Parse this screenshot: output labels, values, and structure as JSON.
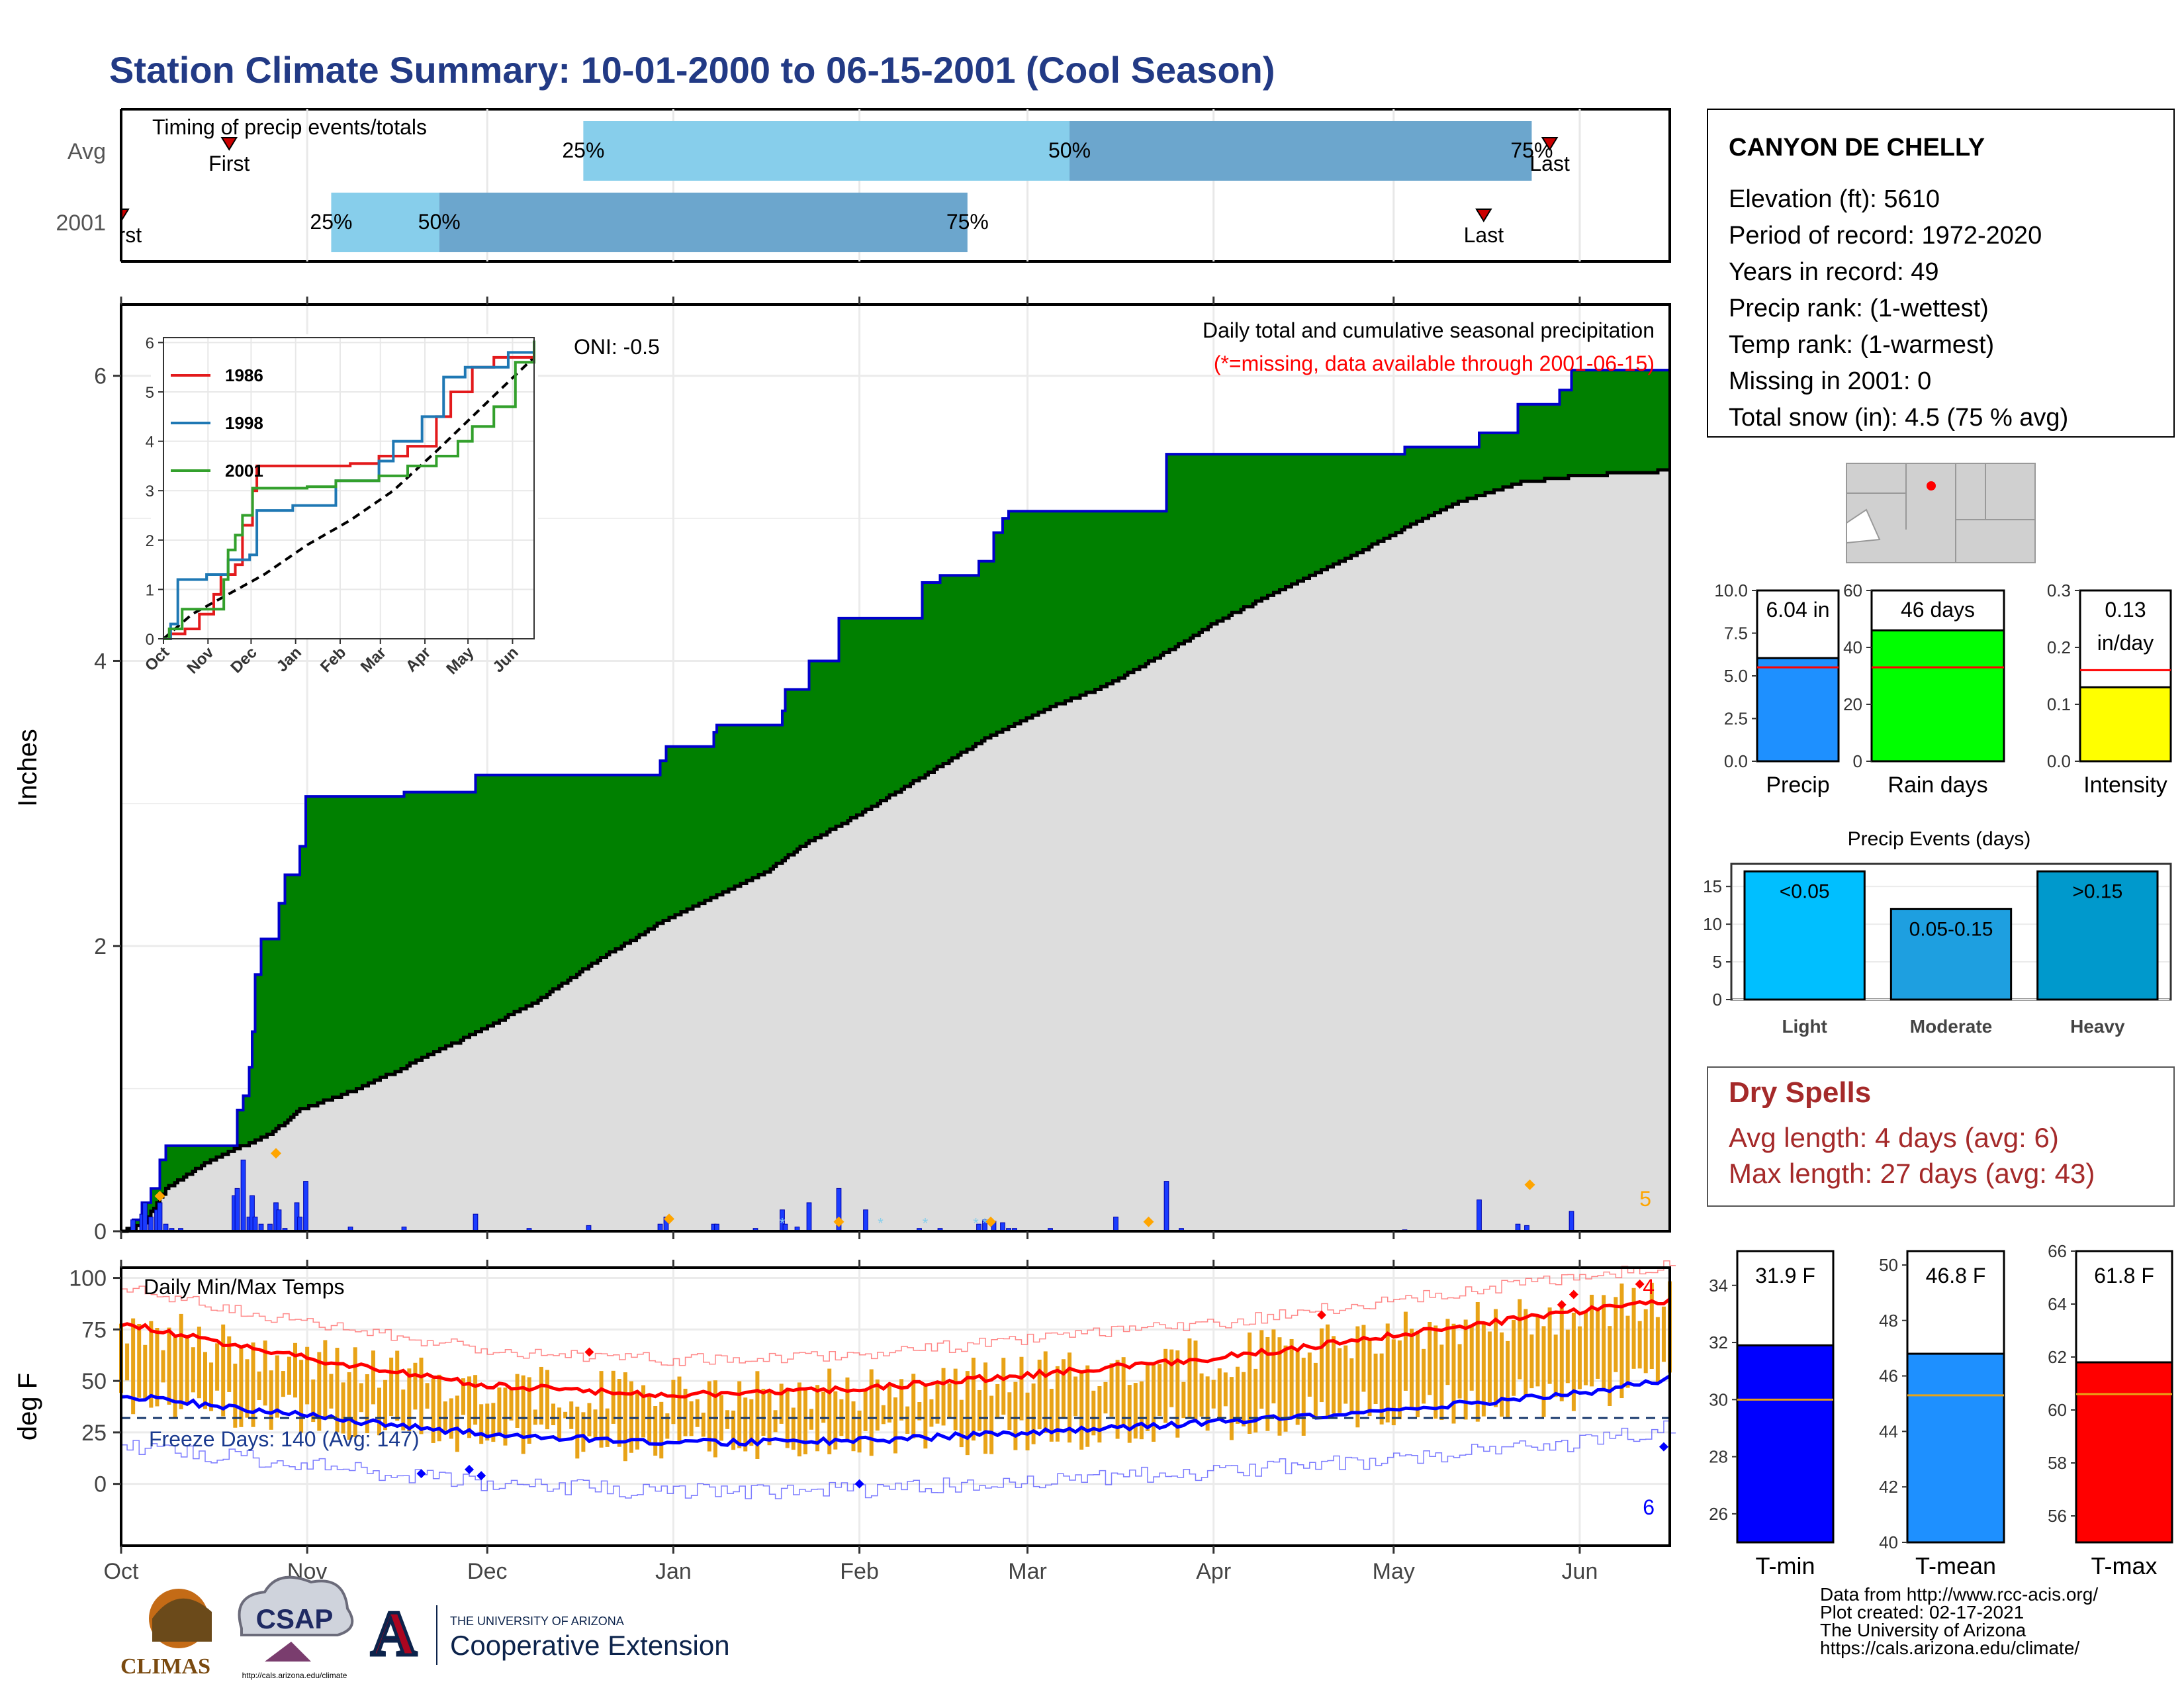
{
  "page": {
    "title": "Station Climate Summary: 10-01-2000 to 06-15-2001 (Cool Season)"
  },
  "timing": {
    "title": "Timing of precip events/totals",
    "rows": [
      {
        "label": "Avg",
        "first_label": "First",
        "last_label": "Last",
        "first": 18,
        "last": 238,
        "p25": 77,
        "p50": 158,
        "p75": 235,
        "p25_label": "25%",
        "p50_label": "50%",
        "p75_label": "75%"
      },
      {
        "label": "2001",
        "first_label": "First",
        "last_label": "Last",
        "first": 0,
        "last": 227,
        "p25": 35,
        "p50": 53,
        "p75": 141,
        "p25_label": "25%",
        "p50_label": "50%",
        "p75_label": "75%"
      }
    ]
  },
  "months": [
    "Oct",
    "Nov",
    "Dec",
    "Jan",
    "Feb",
    "Mar",
    "Apr",
    "May",
    "Jun"
  ],
  "precip": {
    "title": "Daily total and cumulative seasonal precipitation",
    "note": "(*=missing, data available through 2001-06-15)",
    "oni": "ONI: -0.5",
    "ylabel": "Inches",
    "yticks": [
      "0",
      "2",
      "4",
      "6"
    ],
    "corner_count": "5",
    "colors": {
      "above_avg": "#008000",
      "avg_fill": "#dddddd",
      "daily_bar": "#1a3cff",
      "cumulative_line": "#0000cc"
    }
  },
  "inset": {
    "legend": [
      "1986",
      "1998",
      "2001"
    ],
    "colors": [
      "#e31a1c",
      "#1f78b4",
      "#33a02c"
    ],
    "yticks": [
      "0",
      "1",
      "2",
      "3",
      "4",
      "5",
      "6"
    ],
    "months": [
      "Oct",
      "Nov",
      "Dec",
      "Jan",
      "Feb",
      "Mar",
      "Apr",
      "May",
      "Jun"
    ]
  },
  "temps": {
    "title": "Daily Min/Max Temps",
    "freeze": "Freeze Days: 140 (Avg: 147)",
    "ylabel": "deg F",
    "yticks": [
      "0",
      "25",
      "50",
      "75",
      "100"
    ],
    "count_top": "4",
    "count_bottom": "6",
    "colors": {
      "range_bar": "#e8a317",
      "avg_max": "#ff0000",
      "avg_min": "#0000ff"
    }
  },
  "station": {
    "name": "CANYON DE CHELLY",
    "lines": [
      "Elevation (ft): 5610",
      "Period of record: 1972-2020",
      "Years in record: 49",
      "Precip rank:  (1-wettest)",
      "Temp rank:  (1-warmest)",
      "Missing in 2001: 0",
      "Total snow (in): 4.5 (75 % avg)"
    ]
  },
  "small_bars": [
    {
      "name": "Precip",
      "value": 6.04,
      "value_label": "6.04 in",
      "avg": 5.5,
      "ymax": 10,
      "color": "#1e90ff",
      "ticks": [
        "0.0",
        "2.5",
        "5.0",
        "7.5",
        "10.0"
      ]
    },
    {
      "name": "Rain days",
      "value": 46,
      "value_label": "46 days",
      "avg": 33,
      "ymax": 60,
      "color": "#00ff00",
      "ticks": [
        "0",
        "20",
        "40",
        "60"
      ]
    },
    {
      "name": "Intensity",
      "value": 0.13,
      "value_label": "0.13",
      "value_label2": "in/day",
      "avg": 0.16,
      "ymax": 0.3,
      "color": "#ffff00",
      "ticks": [
        "0.0",
        "0.1",
        "0.2",
        "0.3"
      ]
    }
  ],
  "precip_events": {
    "title": "Precip Events (days)",
    "categories": [
      "Light",
      "Moderate",
      "Heavy"
    ],
    "labels": [
      "<0.05",
      "0.05-0.15",
      ">0.15"
    ],
    "values": [
      17,
      12,
      17
    ],
    "colors": [
      "#00bfff",
      "#1e9fe0",
      "#0099cc"
    ],
    "ticks": [
      "0",
      "5",
      "10",
      "15"
    ]
  },
  "dry_spells": {
    "title": "Dry Spells",
    "avg": "Avg length: 4 days (avg: 6)",
    "max": "Max length: 27 days (avg: 43)"
  },
  "temp_bars": [
    {
      "name": "T-min",
      "value_label": "31.9 F",
      "value": 31.9,
      "avg": 30.0,
      "ymin": 25,
      "ymax": 35.2,
      "color": "#0000ff",
      "ticks": [
        "26",
        "28",
        "30",
        "32",
        "34"
      ]
    },
    {
      "name": "T-mean",
      "value_label": "46.8 F",
      "value": 46.8,
      "avg": 45.3,
      "ymin": 40,
      "ymax": 50.5,
      "color": "#1e90ff",
      "ticks": [
        "40",
        "42",
        "44",
        "46",
        "48",
        "50"
      ]
    },
    {
      "name": "T-max",
      "value_label": "61.8 F",
      "value": 61.8,
      "avg": 60.6,
      "ymin": 55,
      "ymax": 66,
      "color": "#ff0000",
      "ticks": [
        "56",
        "58",
        "60",
        "62",
        "64",
        "66"
      ]
    }
  ],
  "footer": {
    "lines": [
      "Data from http://www.rcc-acis.org/",
      "Plot created: 02-17-2021",
      "The University of Arizona",
      "https://cals.arizona.edu/climate/"
    ],
    "logos": {
      "climas": "CLIMAS",
      "csap": "CSAP",
      "csap_url": "http://cals.arizona.edu/climate",
      "ua_small": "THE UNIVERSITY OF ARIZONA",
      "ua_big": "Cooperative Extension"
    }
  },
  "chart_data": [
    {
      "type": "bar",
      "title": "Timing of precip events/totals",
      "categories": [
        "Avg",
        "2001"
      ],
      "series": [
        {
          "name": "25%",
          "values": [
            77,
            35
          ]
        },
        {
          "name": "50%",
          "values": [
            158,
            53
          ]
        },
        {
          "name": "75%",
          "values": [
            235,
            141
          ]
        },
        {
          "name": "First",
          "values": [
            18,
            0
          ]
        },
        {
          "name": "Last",
          "values": [
            238,
            227
          ]
        }
      ]
    },
    {
      "type": "area",
      "title": "Daily total and cumulative seasonal precipitation",
      "ylabel": "Inches",
      "ylim": [
        0,
        6.5
      ],
      "x": [
        "Oct 1",
        "Oct 5",
        "Oct 13",
        "Oct 21",
        "Nov 1",
        "Nov 5",
        "Nov 15",
        "Dec 1",
        "Dec 10",
        "Jan 1",
        "Jan 10",
        "Feb 1",
        "Feb 15",
        "Mar 1",
        "Apr 1",
        "Apr 15",
        "May 1",
        "May 15",
        "Jun 15"
      ],
      "series": [
        {
          "name": "2001",
          "values": [
            0.0,
            0.2,
            0.6,
            0.6,
            2.0,
            2.4,
            3.05,
            3.08,
            3.2,
            3.2,
            3.5,
            4.3,
            4.6,
            4.7,
            5.05,
            5.45,
            5.5,
            5.8,
            6.04
          ]
        },
        {
          "name": "Avg",
          "values": [
            0.0,
            0.1,
            0.4,
            0.6,
            0.9,
            1.05,
            1.3,
            1.6,
            1.75,
            2.2,
            2.4,
            3.0,
            3.3,
            3.6,
            4.3,
            4.55,
            4.8,
            5.1,
            5.3
          ]
        }
      ]
    },
    {
      "type": "line",
      "title": "",
      "categories": [
        "Oct",
        "Nov",
        "Dec",
        "Jan",
        "Feb",
        "Mar",
        "Apr",
        "May",
        "Jun"
      ],
      "ylim": [
        0,
        6
      ],
      "series": [
        {
          "name": "1986",
          "values": [
            0.1,
            1.2,
            3.5,
            3.5,
            3.5,
            3.9,
            5.2,
            5.7,
            5.8
          ]
        },
        {
          "name": "1998",
          "values": [
            0.1,
            1.6,
            2.6,
            3.2,
            3.4,
            4.0,
            5.4,
            5.7,
            5.8
          ]
        },
        {
          "name": "2001",
          "values": [
            0.1,
            2.0,
            3.05,
            3.2,
            3.5,
            4.7,
            5.05,
            5.5,
            6.04
          ]
        }
      ]
    },
    {
      "type": "line",
      "title": "Daily Min/Max Temps",
      "ylabel": "deg F",
      "ylim": [
        -30,
        105
      ],
      "x": [
        "Oct 1",
        "Nov 1",
        "Dec 1",
        "Jan 1",
        "Feb 1",
        "Mar 1",
        "Apr 1",
        "May 1",
        "Jun 1",
        "Jun 15"
      ],
      "series": [
        {
          "name": "Avg max",
          "values": [
            78,
            61,
            48,
            43,
            46,
            53,
            61,
            72,
            84,
            89
          ]
        },
        {
          "name": "Avg min",
          "values": [
            43,
            33,
            24,
            20,
            21,
            25,
            30,
            36,
            44,
            51
          ]
        }
      ]
    },
    {
      "type": "bar",
      "title": "",
      "categories": [
        "Precip",
        "Rain days",
        "Intensity"
      ],
      "series": [
        {
          "name": "2001",
          "values": [
            6.04,
            46,
            0.13
          ]
        }
      ]
    },
    {
      "type": "bar",
      "title": "Precip Events (days)",
      "categories": [
        "Light",
        "Moderate",
        "Heavy"
      ],
      "values": [
        17,
        12,
        17
      ],
      "ylim": [
        0,
        18
      ]
    },
    {
      "type": "bar",
      "title": "",
      "categories": [
        "T-min",
        "T-mean",
        "T-max"
      ],
      "series": [
        {
          "name": "2001",
          "values": [
            31.9,
            46.8,
            61.8
          ]
        }
      ]
    }
  ]
}
